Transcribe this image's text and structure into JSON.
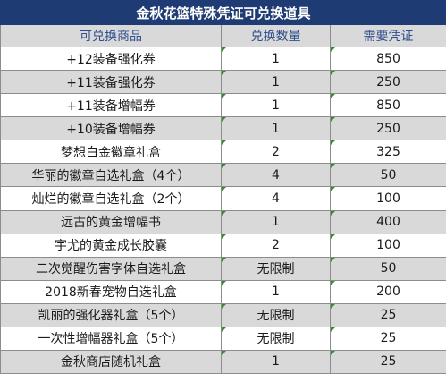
{
  "title": "金秋花篮特殊凭证可兑换道具",
  "headers": {
    "item": "可兑换商品",
    "quantity": "兑换数量",
    "cost": "需要凭证"
  },
  "rows": [
    {
      "item": "+12装备强化券",
      "quantity": "1",
      "cost": "850"
    },
    {
      "item": "+11装备强化券",
      "quantity": "1",
      "cost": "250"
    },
    {
      "item": "+11装备增幅券",
      "quantity": "1",
      "cost": "850"
    },
    {
      "item": "+10装备增幅券",
      "quantity": "1",
      "cost": "250"
    },
    {
      "item": "梦想白金徽章礼盒",
      "quantity": "2",
      "cost": "325"
    },
    {
      "item": "华丽的徽章自选礼盒（4个）",
      "quantity": "4",
      "cost": "50"
    },
    {
      "item": "灿烂的徽章自选礼盒（2个）",
      "quantity": "4",
      "cost": "100"
    },
    {
      "item": "远古的黄金增幅书",
      "quantity": "1",
      "cost": "400"
    },
    {
      "item": "宇尤的黄金成长胶囊",
      "quantity": "2",
      "cost": "100"
    },
    {
      "item": "二次觉醒伤害字体自选礼盒",
      "quantity": "无限制",
      "cost": "50"
    },
    {
      "item": "2018新春宠物自选礼盒",
      "quantity": "1",
      "cost": "200"
    },
    {
      "item": "凯丽的强化器礼盒（5个）",
      "quantity": "无限制",
      "cost": "25"
    },
    {
      "item": "一次性增幅器礼盒（5个）",
      "quantity": "无限制",
      "cost": "25"
    },
    {
      "item": "金秋商店随机礼盒",
      "quantity": "1",
      "cost": "25"
    }
  ],
  "colors": {
    "title_bg": "#1f3b73",
    "title_text": "#ffffff",
    "header_text": "#2e4f8f",
    "shade_bg": "#d9d9d9",
    "mark": "#2f8f2f"
  }
}
